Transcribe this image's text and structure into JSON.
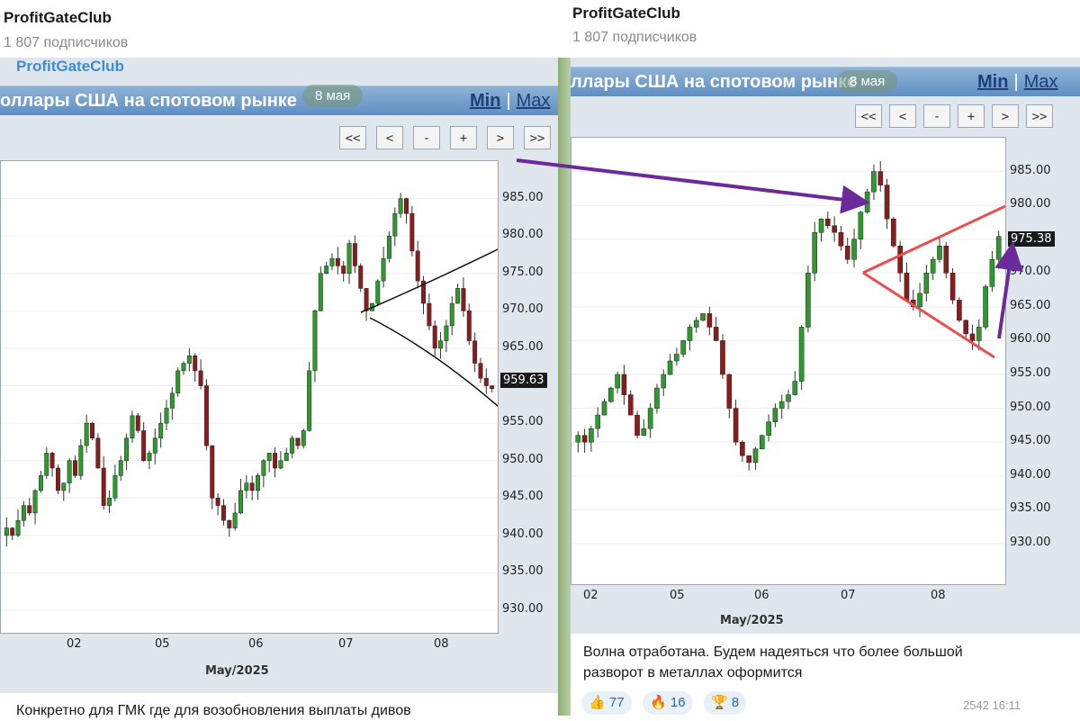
{
  "left_post": {
    "channel": "ProfitGateClub",
    "subscribers": "1 807 подписчиков",
    "watermark": "ProfitGateClub",
    "chart_title": "оллары США на спотовом рынке",
    "date_badge": "8 мая",
    "min_label": "Min",
    "max_label": "Max",
    "nav_buttons": [
      "<<",
      "<",
      "-",
      "+",
      ">",
      ">>"
    ],
    "price_tag": "959.63",
    "month_label": "May/2025",
    "message": "Конкретно для ГМК где для возобновления выплаты дивов"
  },
  "right_post": {
    "channel": "ProfitGateClub",
    "subscribers": "1 807 подписчиков",
    "chart_title": "ллары США на спотовом рынке",
    "date_badge": "8 мая",
    "min_label": "Min",
    "max_label": "Max",
    "nav_buttons": [
      "<<",
      "<",
      "-",
      "+",
      ">",
      ">>"
    ],
    "price_tag": "975.38",
    "month_label": "May/2025",
    "message_line1": "Волна отработана. Будем надеяться что более большой",
    "message_line2": "разворот в металлах оформится",
    "reactions": [
      {
        "emoji": "👍",
        "count": "77"
      },
      {
        "emoji": "🔥",
        "count": "16"
      },
      {
        "emoji": "🏆",
        "count": "8"
      }
    ],
    "footer_partial": "2542  16:11"
  },
  "colors": {
    "bull": "#2e9a2e",
    "bear": "#8b1c1c",
    "arrow": "#6a2a9a",
    "triangle": "#e85050",
    "trendline": "#111111"
  },
  "chart_data": [
    {
      "type": "candlestick",
      "title": "оллары США на спотовом рынке",
      "xlabel": "May/2025",
      "x_ticks": [
        "02",
        "05",
        "06",
        "07",
        "08"
      ],
      "y_ticks": [
        930.0,
        935.0,
        940.0,
        945.0,
        950.0,
        955.0,
        960.0,
        965.0,
        970.0,
        975.0,
        980.0,
        985.0
      ],
      "ylim": [
        927,
        990
      ],
      "last_price": 959.63,
      "close_path": [
        941,
        940,
        942,
        944,
        943,
        946,
        948,
        951,
        949,
        946,
        947,
        950,
        948,
        952,
        955,
        953,
        949,
        944,
        945,
        948,
        950,
        953,
        956,
        954,
        950,
        951,
        953,
        955,
        957,
        959,
        962,
        963,
        964,
        962,
        960,
        952,
        945,
        944,
        942,
        941,
        943,
        946,
        947,
        946,
        948,
        950,
        951,
        949,
        950,
        951,
        953,
        952,
        954,
        962,
        970,
        975,
        976,
        977,
        976,
        975,
        979,
        976,
        973,
        970,
        971,
        974,
        977,
        980,
        983,
        985,
        983,
        978,
        974,
        971,
        968,
        965,
        966,
        968,
        971,
        973,
        970,
        966,
        963,
        961,
        960,
        959.6
      ],
      "annotations": [
        "black converging trendlines near 07–08"
      ]
    },
    {
      "type": "candlestick",
      "title": "ллары США на спотовом рынке",
      "xlabel": "May/2025",
      "x_ticks": [
        "02",
        "05",
        "06",
        "07",
        "08"
      ],
      "y_ticks": [
        930.0,
        935.0,
        940.0,
        945.0,
        950.0,
        955.0,
        960.0,
        965.0,
        970.0,
        975.0,
        980.0,
        985.0
      ],
      "ylim": [
        924,
        990
      ],
      "last_price": 975.38,
      "close_path": [
        946,
        945,
        947,
        949,
        951,
        953,
        955,
        952,
        949,
        946,
        947,
        950,
        953,
        955,
        957,
        958,
        960,
        962,
        963,
        964,
        962,
        960,
        955,
        950,
        945,
        943,
        942,
        944,
        946,
        948,
        950,
        951,
        952,
        954,
        962,
        970,
        976,
        978,
        977,
        976,
        974,
        972,
        975,
        979,
        982,
        985,
        983,
        978,
        974,
        970,
        966,
        965,
        967,
        970,
        972,
        974,
        970,
        966,
        963,
        961,
        960,
        962,
        968,
        972,
        975.4
      ],
      "annotations": [
        "red symmetrical triangle",
        "purple arrows"
      ]
    }
  ]
}
